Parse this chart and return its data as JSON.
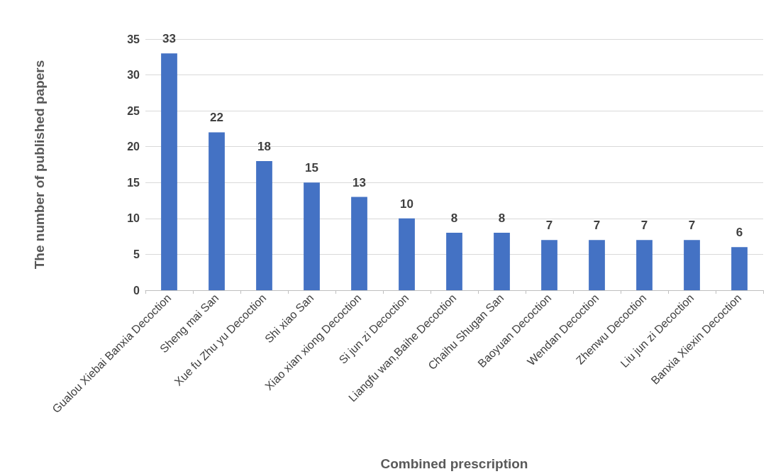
{
  "chart_data": {
    "type": "bar",
    "xlabel": "Combined prescription",
    "ylabel": "The number of published papers",
    "categories": [
      "Gualou Xiebai Banxia Decoction",
      "Sheng mai San",
      "Xue fu Zhu yu Decoction",
      "Shi xiao San",
      "Xiao xian xiong Decoction",
      "Si jun zi Decoction",
      "Liangfu wan,Baihe Decoction",
      "Chaihu Shugan San",
      "Baoyuan Decoction",
      "Wendan Decoction",
      "Zhenwu Decoction",
      "Liu jun zi Decoction",
      "Banxia Xiexin Decoction"
    ],
    "values": [
      33,
      22,
      18,
      15,
      13,
      10,
      8,
      8,
      7,
      7,
      7,
      7,
      6
    ],
    "color": "#4472c4",
    "ylim": [
      0,
      35
    ],
    "yticks": [
      0,
      5,
      10,
      15,
      20,
      25,
      30,
      35
    ],
    "grid": "y",
    "data_labels": true
  }
}
